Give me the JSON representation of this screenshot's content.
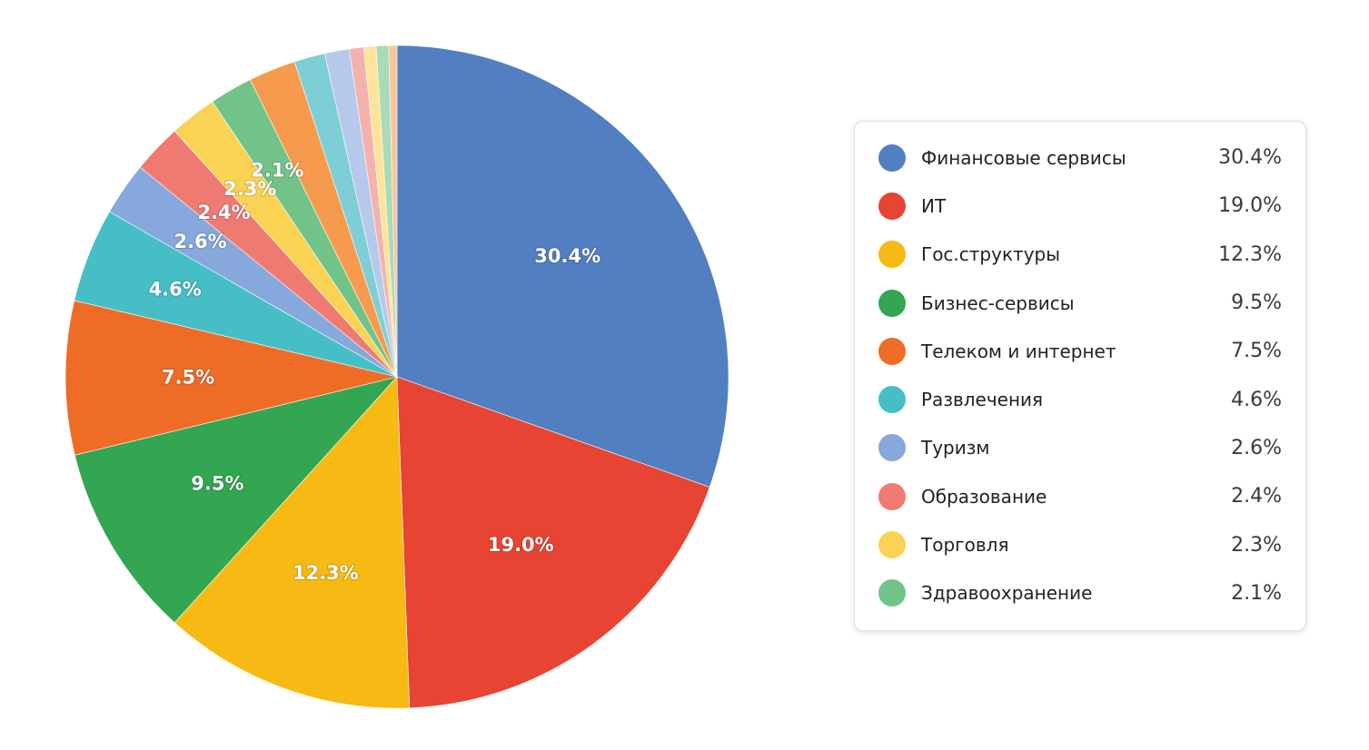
{
  "chart_data": {
    "type": "pie",
    "title": "",
    "unit": "%",
    "slices": [
      {
        "name": "Финансовые сервисы",
        "value": 30.4,
        "label": "30.4%",
        "legend_value": "30.4%",
        "color": "#517fc1"
      },
      {
        "name": "ИТ",
        "value": 19.0,
        "label": "19.0%",
        "legend_value": "19.0%",
        "color": "#e84433"
      },
      {
        "name": "Гос.структуры",
        "value": 12.3,
        "label": "12.3%",
        "legend_value": "12.3%",
        "color": "#f7b913"
      },
      {
        "name": "Бизнес-сервисы",
        "value": 9.5,
        "label": "9.5%",
        "legend_value": "9.5%",
        "color": "#32a650"
      },
      {
        "name": "Телеком и интернет",
        "value": 7.5,
        "label": "7.5%",
        "legend_value": "7.5%",
        "color": "#ef6c26"
      },
      {
        "name": "Развлечения",
        "value": 4.6,
        "label": "4.6%",
        "legend_value": "4.6%",
        "color": "#46bec6"
      },
      {
        "name": "Туризм",
        "value": 2.6,
        "label": "2.6%",
        "legend_value": "2.6%",
        "color": "#86a8dc"
      },
      {
        "name": "Образование",
        "value": 2.4,
        "label": "2.4%",
        "legend_value": "2.4%",
        "color": "#ef7a72"
      },
      {
        "name": "Торговля",
        "value": 2.3,
        "label": "2.3%",
        "legend_value": "2.3%",
        "color": "#fbd354"
      },
      {
        "name": "Здравоохранение",
        "value": 2.1,
        "label": "2.1%",
        "legend_value": "2.1%",
        "color": "#72c387"
      },
      {
        "name": "",
        "value": 2.3,
        "label": "",
        "color": "#f69b4e"
      },
      {
        "name": "",
        "value": 1.5,
        "label": "",
        "color": "#7ecfd5"
      },
      {
        "name": "",
        "value": 1.2,
        "label": "",
        "color": "#b6c9ea"
      },
      {
        "name": "",
        "value": 0.7,
        "label": "",
        "color": "#f4b2ae"
      },
      {
        "name": "",
        "value": 0.6,
        "label": "",
        "color": "#fde49a"
      },
      {
        "name": "",
        "value": 0.6,
        "label": "",
        "color": "#a9dbb6"
      },
      {
        "name": "",
        "value": 0.4,
        "label": "",
        "color": "#f9c59b"
      }
    ],
    "legend": {
      "placement": "right",
      "entries": 10
    }
  }
}
